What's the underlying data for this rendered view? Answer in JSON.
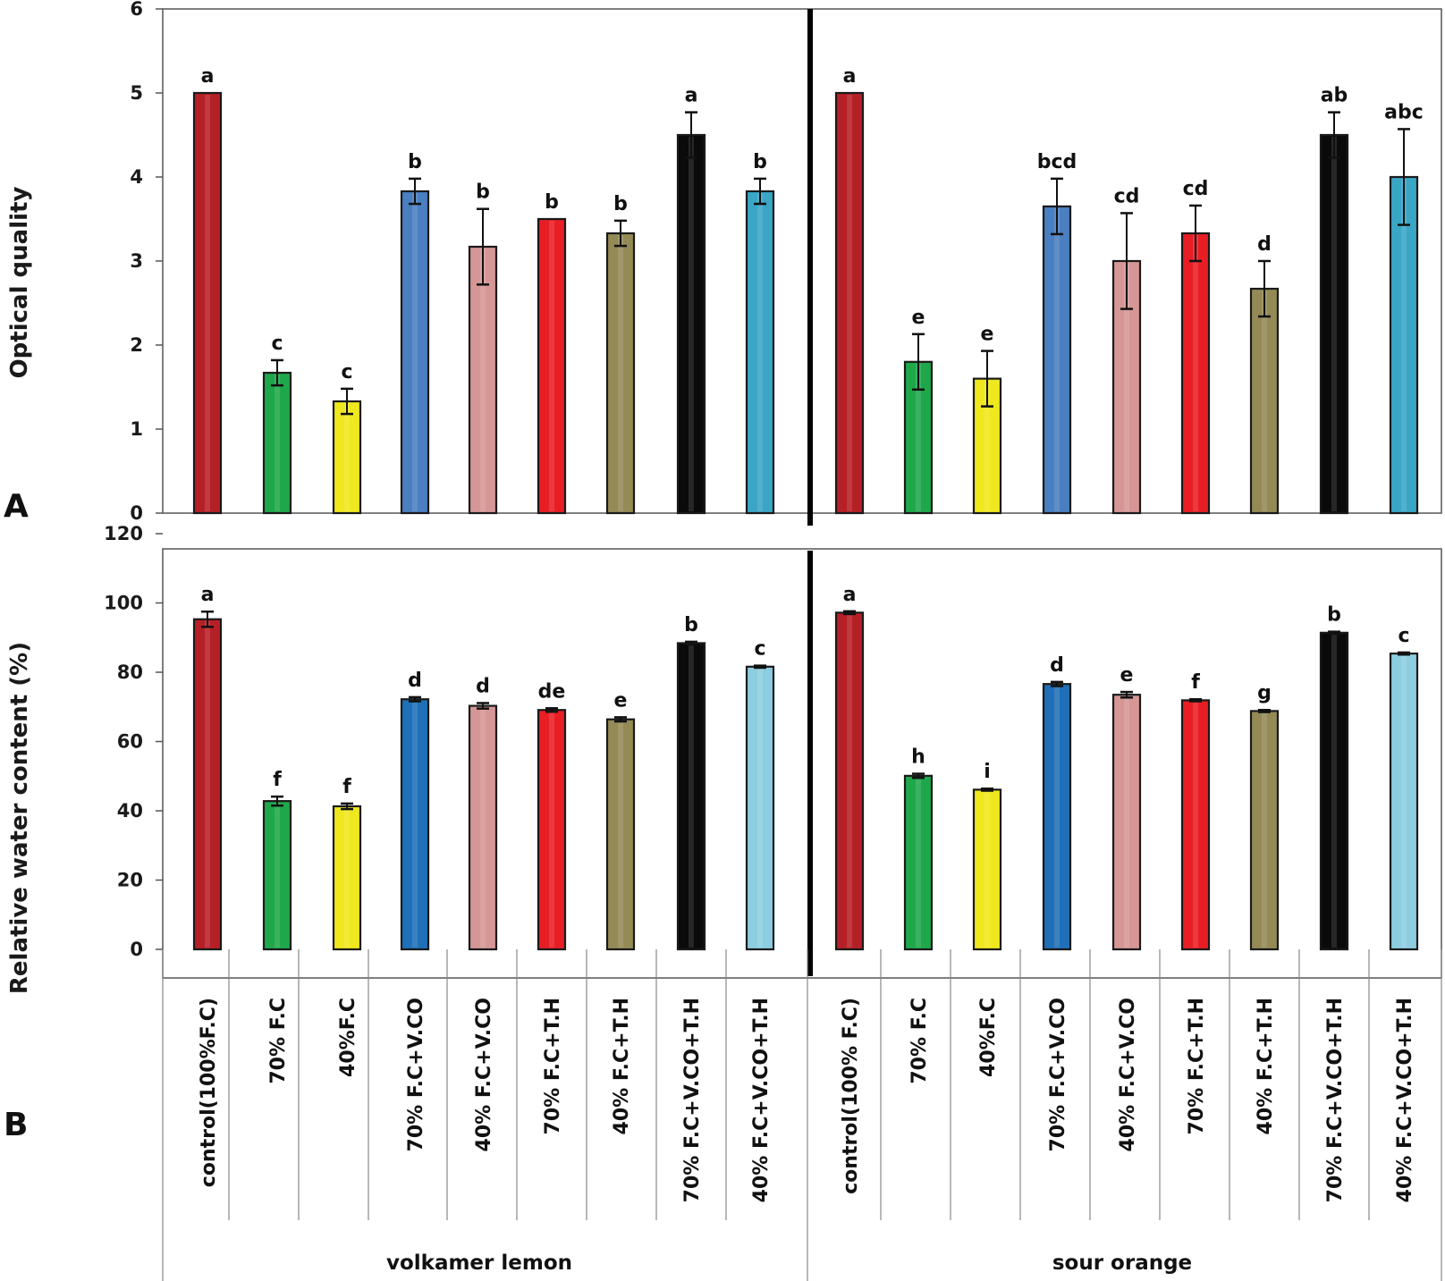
{
  "chart_data": [
    {
      "panel": "A",
      "type": "bar",
      "title": "",
      "xlabel": "",
      "ylabel": "Optical quality",
      "ylim": [
        0,
        6
      ],
      "yticks": [
        "0",
        "1",
        "2",
        "3",
        "4",
        "5",
        "6"
      ],
      "grid": false,
      "groups": [
        {
          "name": "volkamer lemon",
          "values": [
            5.0,
            1.67,
            1.33,
            3.83,
            3.17,
            3.5,
            3.33,
            4.5,
            3.83
          ],
          "errors": [
            0,
            0.15,
            0.15,
            0.15,
            0.45,
            0,
            0.15,
            0.27,
            0.15
          ],
          "letters": [
            "a",
            "c",
            "c",
            "b",
            "b",
            "b",
            "b",
            "a",
            "b"
          ]
        },
        {
          "name": "sour orange",
          "values": [
            5.0,
            1.8,
            1.6,
            3.65,
            3.0,
            3.33,
            2.67,
            4.5,
            4.0
          ],
          "errors": [
            0,
            0.33,
            0.33,
            0.33,
            0.57,
            0.33,
            0.33,
            0.27,
            0.57
          ],
          "letters": [
            "a",
            "e",
            "e",
            "bcd",
            "cd",
            "cd",
            "d",
            "ab",
            "abc"
          ]
        }
      ]
    },
    {
      "panel": "B",
      "type": "bar",
      "title": "",
      "xlabel": "",
      "ylabel": "Relative water content  (%)",
      "ylim": [
        0,
        120
      ],
      "yticks": [
        "0",
        "20",
        "40",
        "60",
        "80",
        "100",
        "120"
      ],
      "grid": false,
      "groups": [
        {
          "name": "volkamer lemon",
          "values": [
            95.3,
            42.8,
            41.3,
            72.2,
            70.3,
            69.1,
            66.4,
            88.4,
            81.6
          ],
          "errors": [
            2.2,
            1.3,
            0.8,
            0.6,
            0.8,
            0.5,
            0.6,
            0.4,
            0.3
          ],
          "letters": [
            "a",
            "f",
            "f",
            "d",
            "d",
            "de",
            "e",
            "b",
            "c"
          ]
        },
        {
          "name": "sour orange",
          "values": [
            97.2,
            50.1,
            46.1,
            76.6,
            73.5,
            71.9,
            68.8,
            91.4,
            85.4
          ],
          "errors": [
            0.4,
            0.6,
            0.3,
            0.6,
            0.8,
            0.3,
            0.3,
            0.3,
            0.3
          ],
          "letters": [
            "a",
            "h",
            "i",
            "d",
            "e",
            "f",
            "g",
            "b",
            "c"
          ]
        }
      ]
    }
  ],
  "categories": {
    "volkamer lemon": [
      "control(100%F.C)",
      "70% F.C",
      "40%F.C",
      "70% F.C+V.CO",
      "40% F.C+V.CO",
      "70% F.C+T.H",
      "40% F.C+T.H",
      "70% F.C+V.CO+T.H",
      "40% F.C+V.CO+T.H"
    ],
    "sour orange": [
      "control(100% F.C)",
      "70% F.C",
      "40%F.C",
      "70% F.C+V.CO",
      "40% F.C+V.CO",
      "70% F.C+T.H",
      "40% F.C+T.H",
      "70% F.C+V.CO+T.H",
      "40% F.C+V.CO+T.H"
    ]
  },
  "treatment_colors": [
    "#b52026",
    "#1fa84b",
    "#f0e81e",
    "#4a7fc1",
    "#d69696",
    "#e81e25",
    "#938a55",
    "#0a0a0a",
    "#3aa6c6"
  ],
  "treatment_colors_b": [
    "#b52026",
    "#1fa84b",
    "#f0e81e",
    "#1f70b8",
    "#d69696",
    "#e81e25",
    "#938a55",
    "#0a0a0a",
    "#8ccde0"
  ],
  "panel_labels": [
    "A",
    "B"
  ],
  "group_labels": [
    "volkamer lemon",
    "sour orange"
  ]
}
